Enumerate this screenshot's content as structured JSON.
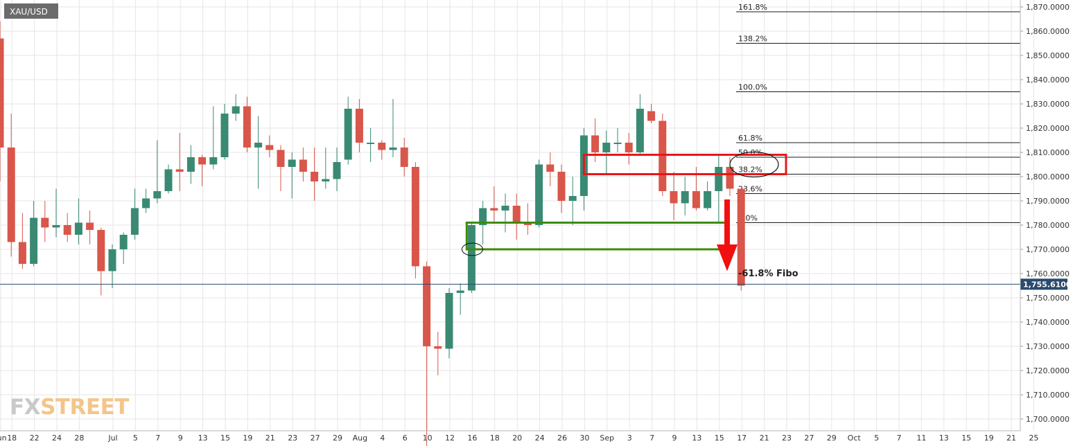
{
  "chart_data": {
    "type": "candlestick",
    "symbol": "XAU/USD",
    "watermark": {
      "part1": "FX",
      "part2": "STREET"
    },
    "ylim": [
      1695,
      1875
    ],
    "y_ticks": [
      "1,700.0000",
      "1,710.0000",
      "1,720.0000",
      "1,730.0000",
      "1,740.0000",
      "1,750.0000",
      "1,760.0000",
      "1,770.0000",
      "1,780.0000",
      "1,790.0000",
      "1,800.0000",
      "1,810.0000",
      "1,820.0000",
      "1,830.0000",
      "1,840.0000",
      "1,850.0000",
      "1,860.0000",
      "1,870.0000"
    ],
    "y_tick_values": [
      1700,
      1710,
      1720,
      1730,
      1740,
      1750,
      1760,
      1770,
      1780,
      1790,
      1800,
      1810,
      1820,
      1830,
      1840,
      1850,
      1860,
      1870
    ],
    "current_price": {
      "label": "1,755.6100",
      "value": 1755.61
    },
    "x_ticks": [
      {
        "label": "Jun",
        "slot": 0
      },
      {
        "label": "18",
        "slot": 1
      },
      {
        "label": "22",
        "slot": 3
      },
      {
        "label": "24",
        "slot": 5
      },
      {
        "label": "28",
        "slot": 7
      },
      {
        "label": "Jul",
        "slot": 10
      },
      {
        "label": "5",
        "slot": 12
      },
      {
        "label": "7",
        "slot": 14
      },
      {
        "label": "9",
        "slot": 16
      },
      {
        "label": "13",
        "slot": 18
      },
      {
        "label": "15",
        "slot": 20
      },
      {
        "label": "19",
        "slot": 22
      },
      {
        "label": "21",
        "slot": 24
      },
      {
        "label": "23",
        "slot": 26
      },
      {
        "label": "27",
        "slot": 28
      },
      {
        "label": "29",
        "slot": 30
      },
      {
        "label": "Aug",
        "slot": 32
      },
      {
        "label": "4",
        "slot": 34
      },
      {
        "label": "6",
        "slot": 36
      },
      {
        "label": "10",
        "slot": 38
      },
      {
        "label": "12",
        "slot": 40
      },
      {
        "label": "16",
        "slot": 42
      },
      {
        "label": "18",
        "slot": 44
      },
      {
        "label": "20",
        "slot": 46
      },
      {
        "label": "24",
        "slot": 48
      },
      {
        "label": "26",
        "slot": 50
      },
      {
        "label": "30",
        "slot": 52
      },
      {
        "label": "Sep",
        "slot": 54
      },
      {
        "label": "3",
        "slot": 56
      },
      {
        "label": "7",
        "slot": 58
      },
      {
        "label": "9",
        "slot": 60
      },
      {
        "label": "13",
        "slot": 62
      },
      {
        "label": "15",
        "slot": 64
      },
      {
        "label": "17",
        "slot": 66
      },
      {
        "label": "21",
        "slot": 68
      },
      {
        "label": "23",
        "slot": 70
      },
      {
        "label": "27",
        "slot": 72
      },
      {
        "label": "29",
        "slot": 74
      },
      {
        "label": "Oct",
        "slot": 76
      },
      {
        "label": "5",
        "slot": 78
      },
      {
        "label": "7",
        "slot": 80
      },
      {
        "label": "11",
        "slot": 82
      },
      {
        "label": "13",
        "slot": 84
      },
      {
        "label": "15",
        "slot": 86
      },
      {
        "label": "19",
        "slot": 88
      },
      {
        "label": "21",
        "slot": 90
      },
      {
        "label": "25",
        "slot": 92
      }
    ],
    "candles": [
      {
        "date": "Jun 16",
        "open": 1857,
        "high": 1864,
        "low": 1798,
        "close": 1812
      },
      {
        "date": "Jun 17",
        "open": 1812,
        "high": 1826,
        "low": 1767,
        "close": 1773
      },
      {
        "date": "Jun 18",
        "open": 1773,
        "high": 1785,
        "low": 1762,
        "close": 1764
      },
      {
        "date": "Jun 21",
        "open": 1764,
        "high": 1790,
        "low": 1763,
        "close": 1783
      },
      {
        "date": "Jun 22",
        "open": 1783,
        "high": 1790,
        "low": 1773,
        "close": 1779
      },
      {
        "date": "Jun 23",
        "open": 1779,
        "high": 1795,
        "low": 1775,
        "close": 1780
      },
      {
        "date": "Jun 24",
        "open": 1780,
        "high": 1785,
        "low": 1773,
        "close": 1776
      },
      {
        "date": "Jun 25",
        "open": 1776,
        "high": 1791,
        "low": 1772,
        "close": 1781
      },
      {
        "date": "Jun 28",
        "open": 1781,
        "high": 1786,
        "low": 1772,
        "close": 1778
      },
      {
        "date": "Jun 29",
        "open": 1778,
        "high": 1779,
        "low": 1751,
        "close": 1761
      },
      {
        "date": "Jun 30",
        "open": 1761,
        "high": 1772,
        "low": 1754,
        "close": 1770
      },
      {
        "date": "Jul 1",
        "open": 1770,
        "high": 1777,
        "low": 1764,
        "close": 1776
      },
      {
        "date": "Jul 2",
        "open": 1776,
        "high": 1795,
        "low": 1774,
        "close": 1787
      },
      {
        "date": "Jul 5",
        "open": 1787,
        "high": 1795,
        "low": 1785,
        "close": 1791
      },
      {
        "date": "Jul 6",
        "open": 1791,
        "high": 1815,
        "low": 1789,
        "close": 1794
      },
      {
        "date": "Jul 7",
        "open": 1794,
        "high": 1805,
        "low": 1793,
        "close": 1803
      },
      {
        "date": "Jul 8",
        "open": 1803,
        "high": 1818,
        "low": 1794,
        "close": 1802
      },
      {
        "date": "Jul 9",
        "open": 1802,
        "high": 1813,
        "low": 1797,
        "close": 1808
      },
      {
        "date": "Jul 12",
        "open": 1808,
        "high": 1809,
        "low": 1796,
        "close": 1805
      },
      {
        "date": "Jul 13",
        "open": 1805,
        "high": 1829,
        "low": 1803,
        "close": 1808
      },
      {
        "date": "Jul 14",
        "open": 1808,
        "high": 1830,
        "low": 1807,
        "close": 1826
      },
      {
        "date": "Jul 15",
        "open": 1826,
        "high": 1834,
        "low": 1823,
        "close": 1829
      },
      {
        "date": "Jul 16",
        "open": 1829,
        "high": 1833,
        "low": 1810,
        "close": 1812
      },
      {
        "date": "Jul 19",
        "open": 1812,
        "high": 1825,
        "low": 1795,
        "close": 1814
      },
      {
        "date": "Jul 20",
        "open": 1813,
        "high": 1817,
        "low": 1808,
        "close": 1811
      },
      {
        "date": "Jul 21",
        "open": 1811,
        "high": 1813,
        "low": 1794,
        "close": 1804
      },
      {
        "date": "Jul 22",
        "open": 1804,
        "high": 1810,
        "low": 1791,
        "close": 1807
      },
      {
        "date": "Jul 23",
        "open": 1807,
        "high": 1812,
        "low": 1798,
        "close": 1802
      },
      {
        "date": "Jul 26",
        "open": 1802,
        "high": 1812,
        "low": 1790,
        "close": 1798
      },
      {
        "date": "Jul 27",
        "open": 1798,
        "high": 1812,
        "low": 1795,
        "close": 1799
      },
      {
        "date": "Jul 28",
        "open": 1799,
        "high": 1812,
        "low": 1794,
        "close": 1806
      },
      {
        "date": "Jul 29",
        "open": 1807,
        "high": 1833,
        "low": 1805,
        "close": 1828
      },
      {
        "date": "Jul 30",
        "open": 1828,
        "high": 1832,
        "low": 1810,
        "close": 1814
      },
      {
        "date": "Aug 2",
        "open": 1814,
        "high": 1820,
        "low": 1806,
        "close": 1814
      },
      {
        "date": "Aug 3",
        "open": 1814,
        "high": 1815,
        "low": 1807,
        "close": 1811
      },
      {
        "date": "Aug 4",
        "open": 1811,
        "high": 1832,
        "low": 1808,
        "close": 1812
      },
      {
        "date": "Aug 5",
        "open": 1812,
        "high": 1816,
        "low": 1800,
        "close": 1804
      },
      {
        "date": "Aug 6",
        "open": 1804,
        "high": 1806,
        "low": 1758,
        "close": 1763
      },
      {
        "date": "Aug 9",
        "open": 1763,
        "high": 1765,
        "low": 1688,
        "close": 1730
      },
      {
        "date": "Aug 10",
        "open": 1730,
        "high": 1736,
        "low": 1718,
        "close": 1729
      },
      {
        "date": "Aug 11",
        "open": 1729,
        "high": 1754,
        "low": 1725,
        "close": 1752
      },
      {
        "date": "Aug 12",
        "open": 1752,
        "high": 1756,
        "low": 1743,
        "close": 1753
      },
      {
        "date": "Aug 13",
        "open": 1753,
        "high": 1781,
        "low": 1752,
        "close": 1780
      },
      {
        "date": "Aug 16",
        "open": 1780,
        "high": 1790,
        "low": 1772,
        "close": 1787
      },
      {
        "date": "Aug 17",
        "open": 1787,
        "high": 1796,
        "low": 1781,
        "close": 1786
      },
      {
        "date": "Aug 18",
        "open": 1786,
        "high": 1793,
        "low": 1777,
        "close": 1788
      },
      {
        "date": "Aug 19",
        "open": 1788,
        "high": 1793,
        "low": 1774,
        "close": 1781
      },
      {
        "date": "Aug 20",
        "open": 1781,
        "high": 1789,
        "low": 1776,
        "close": 1780
      },
      {
        "date": "Aug 23",
        "open": 1780,
        "high": 1807,
        "low": 1779,
        "close": 1805
      },
      {
        "date": "Aug 24",
        "open": 1805,
        "high": 1810,
        "low": 1796,
        "close": 1802
      },
      {
        "date": "Aug 25",
        "open": 1802,
        "high": 1805,
        "low": 1785,
        "close": 1790
      },
      {
        "date": "Aug 26",
        "open": 1790,
        "high": 1800,
        "low": 1780,
        "close": 1792
      },
      {
        "date": "Aug 27",
        "open": 1792,
        "high": 1820,
        "low": 1786,
        "close": 1817
      },
      {
        "date": "Aug 30",
        "open": 1817,
        "high": 1824,
        "low": 1806,
        "close": 1810
      },
      {
        "date": "Aug 31",
        "open": 1810,
        "high": 1819,
        "low": 1801,
        "close": 1814
      },
      {
        "date": "Sep 1",
        "open": 1814,
        "high": 1820,
        "low": 1810,
        "close": 1814
      },
      {
        "date": "Sep 2",
        "open": 1814,
        "high": 1818,
        "low": 1805,
        "close": 1810
      },
      {
        "date": "Sep 3",
        "open": 1810,
        "high": 1834,
        "low": 1809,
        "close": 1828
      },
      {
        "date": "Sep 6",
        "open": 1827,
        "high": 1830,
        "low": 1822,
        "close": 1823
      },
      {
        "date": "Sep 7",
        "open": 1823,
        "high": 1826,
        "low": 1792,
        "close": 1794
      },
      {
        "date": "Sep 8",
        "open": 1794,
        "high": 1802,
        "low": 1782,
        "close": 1789
      },
      {
        "date": "Sep 9",
        "open": 1789,
        "high": 1800,
        "low": 1784,
        "close": 1794
      },
      {
        "date": "Sep 10",
        "open": 1794,
        "high": 1804,
        "low": 1786,
        "close": 1787
      },
      {
        "date": "Sep 13",
        "open": 1787,
        "high": 1798,
        "low": 1786,
        "close": 1794
      },
      {
        "date": "Sep 14",
        "open": 1794,
        "high": 1809,
        "low": 1781,
        "close": 1804
      },
      {
        "date": "Sep 15",
        "open": 1804,
        "high": 1808,
        "low": 1792,
        "close": 1795
      },
      {
        "date": "Sep 16",
        "open": 1795,
        "high": 1795,
        "low": 1753,
        "close": 1755
      }
    ],
    "fibonacci": [
      {
        "label": "161.8%",
        "value": 1868
      },
      {
        "label": "138.2%",
        "value": 1855
      },
      {
        "label": "100.0%",
        "value": 1835
      },
      {
        "label": "61.8%",
        "value": 1814
      },
      {
        "label": "50.0%",
        "value": 1808
      },
      {
        "label": "38.2%",
        "value": 1801
      },
      {
        "label": "23.6%",
        "value": 1793
      },
      {
        "label": "0.0%",
        "value": 1781
      }
    ],
    "annotation": {
      "text": "-61.8% Fibo"
    },
    "zones": {
      "red_box": {
        "x_from_slot": 52,
        "x_to_slot": 70,
        "top": 1809,
        "bottom": 1801
      },
      "green_box": {
        "x_from_slot": 41.5,
        "x_to_slot": 64.8,
        "top": 1781,
        "bottom": 1770
      }
    },
    "colors": {
      "up": "#3a8a73",
      "down": "#d9564a",
      "red_box": "#e8151b",
      "green_box": "#3d8b06",
      "arrow": "#f10f0f",
      "price_tag": "#2a4a6e",
      "symbol_bg": "#6b6b6b"
    }
  }
}
